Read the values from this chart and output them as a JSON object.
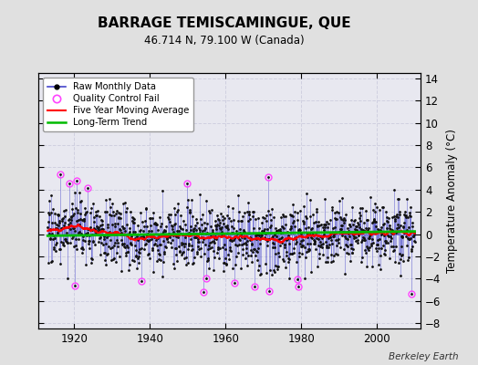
{
  "title": "BARRAGE TEMISCAMINGUE, QUE",
  "subtitle": "46.714 N, 79.100 W (Canada)",
  "ylabel": "Temperature Anomaly (°C)",
  "credit": "Berkeley Earth",
  "xlim": [
    1910.5,
    2011.5
  ],
  "ylim": [
    -8.5,
    14.5
  ],
  "yticks": [
    -8,
    -6,
    -4,
    -2,
    0,
    2,
    4,
    6,
    8,
    10,
    12,
    14
  ],
  "xticks": [
    1920,
    1940,
    1960,
    1980,
    2000
  ],
  "bg_color": "#e0e0e0",
  "plot_bg": "#e8e8f0",
  "raw_color": "#4444cc",
  "raw_marker_color": "#111111",
  "qc_color": "#ff44ff",
  "ma_color": "#ff0000",
  "trend_color": "#00bb00",
  "grid_color": "#d0d0e0",
  "seed": 17,
  "n_months": 1164,
  "start_year": 1913.0,
  "trend_slope": 0.004,
  "trend_intercept": -0.15
}
